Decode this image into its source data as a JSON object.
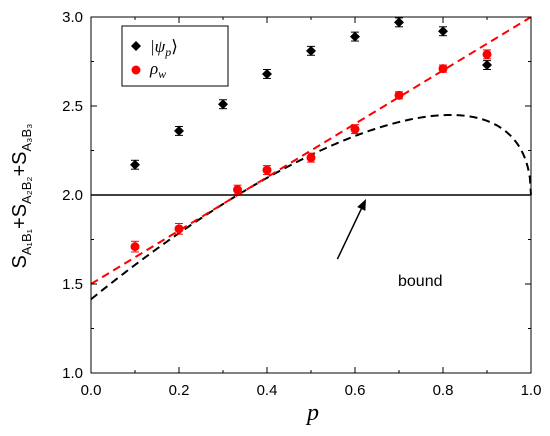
{
  "chart_data": {
    "type": "scatter",
    "xlabel": "p",
    "ylabel_parts": {
      "s1": "S",
      "sub1": "A₁B₁",
      "s2": "+S",
      "sub2": "A₂B₂",
      "s3": "+S",
      "sub3": "A₃B₃"
    },
    "xlim": [
      0.0,
      1.0
    ],
    "ylim": [
      1.0,
      3.0
    ],
    "x_ticks": [
      "0.0",
      "0.2",
      "0.4",
      "0.6",
      "0.8",
      "1.0"
    ],
    "y_ticks": [
      "1.0",
      "1.5",
      "2.0",
      "2.5",
      "3.0"
    ],
    "grid": false,
    "legend_position": "top-left",
    "series": [
      {
        "name": "|ψ_p⟩",
        "legend_label": "|ψ",
        "legend_sub": "p",
        "legend_close": "⟩",
        "marker": "diamond",
        "color": "#000000",
        "x": [
          0.1,
          0.2,
          0.3,
          0.4,
          0.5,
          0.6,
          0.7,
          0.8,
          0.9
        ],
        "y": [
          2.17,
          2.36,
          2.51,
          2.68,
          2.81,
          2.89,
          2.97,
          2.92,
          2.73
        ],
        "err": [
          0.025,
          0.025,
          0.025,
          0.025,
          0.025,
          0.025,
          0.025,
          0.025,
          0.025
        ]
      },
      {
        "name": "ρ_w",
        "legend_label": "ρ",
        "legend_sub": "w",
        "legend_close": "",
        "marker": "circle",
        "color": "#ff0000",
        "x": [
          0.1,
          0.2,
          0.333,
          0.4,
          0.5,
          0.6,
          0.7,
          0.8,
          0.9
        ],
        "y": [
          1.71,
          1.81,
          2.03,
          2.14,
          2.21,
          2.37,
          2.56,
          2.71,
          2.79
        ],
        "err": [
          0.03,
          0.03,
          0.025,
          0.025,
          0.025,
          0.025,
          0.02,
          0.02,
          0.025
        ]
      }
    ],
    "theory_curves": [
      {
        "kind": "quantum",
        "color": "#000000",
        "style": "dashed"
      },
      {
        "kind": "linear",
        "color": "#ff0000",
        "style": "dashed",
        "x": [
          0.0,
          1.0
        ],
        "y": [
          1.5,
          3.0
        ]
      }
    ],
    "bound_line": {
      "y": 2.0,
      "color": "#000000"
    },
    "annotation": {
      "text": "bound",
      "arrow_from_x": 0.56,
      "arrow_from_y": 1.64,
      "arrow_to_x": 0.625,
      "arrow_to_y": 2.0
    }
  }
}
